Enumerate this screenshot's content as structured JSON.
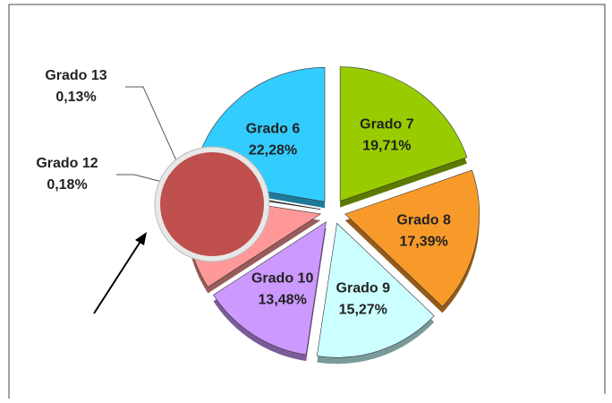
{
  "chart_data": {
    "type": "pie",
    "categories": [
      "Grado 7",
      "Grado 8",
      "Grado 9",
      "Grado 10",
      null,
      "Grado 12",
      "Grado 13",
      "Grado 6"
    ],
    "values": [
      19.71,
      17.39,
      15.27,
      13.48,
      11.56,
      0.18,
      0.13,
      22.28
    ],
    "value_labels": [
      "19,71%",
      "17,39%",
      "15,27%",
      "13,48%",
      null,
      "0,18%",
      "0,13%",
      "22,28%"
    ],
    "colors": [
      "#99cc00",
      "#f79a2a",
      "#ccffff",
      "#cc99ff",
      "#ff9999",
      "#339933",
      "#3366cc",
      "#33ccff"
    ]
  }
}
